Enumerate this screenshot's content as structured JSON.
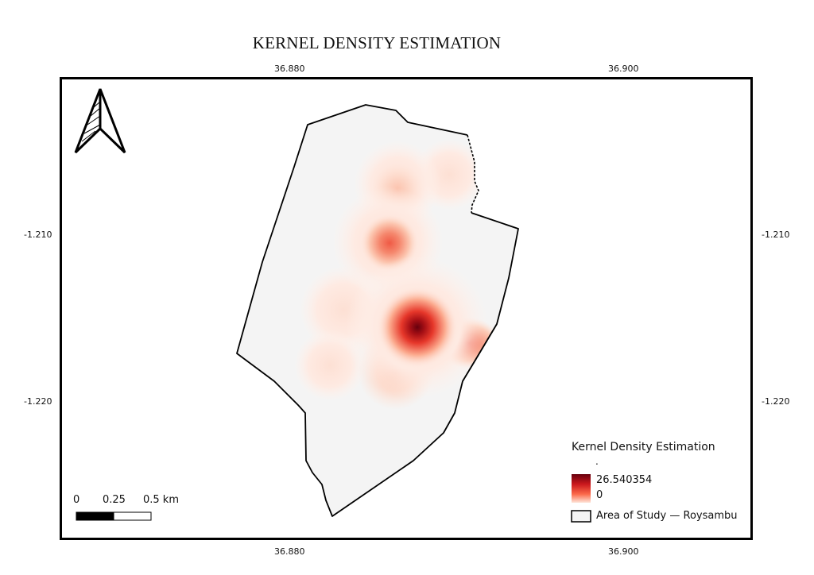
{
  "map": {
    "title": "KERNEL DENSITY ESTIMATION",
    "grid": {
      "top_left_lon": "36.880",
      "top_right_lon": "36.900",
      "bottom_left_lon": "36.880",
      "bottom_right_lon": "36.900",
      "left_upper_lat": "-1.210",
      "left_lower_lat": "-1.220",
      "right_upper_lat": "-1.210",
      "right_lower_lat": "-1.220"
    },
    "north_arrow_icon": "north-arrow-icon",
    "scale_bar": {
      "label_0": "0",
      "label_mid": "0.25",
      "label_end": "0.5 km"
    },
    "legend": {
      "title": "Kernel Density Estimation",
      "subtitle": ".",
      "max_label": "26.540354",
      "min_label": "0",
      "area_label": "Area of Study — Roysambu"
    },
    "colors": {
      "density_high": "#67000d",
      "density_mid": "#e6372a",
      "density_low": "#fee5d9",
      "area_fill": "#f4f4f4"
    }
  }
}
